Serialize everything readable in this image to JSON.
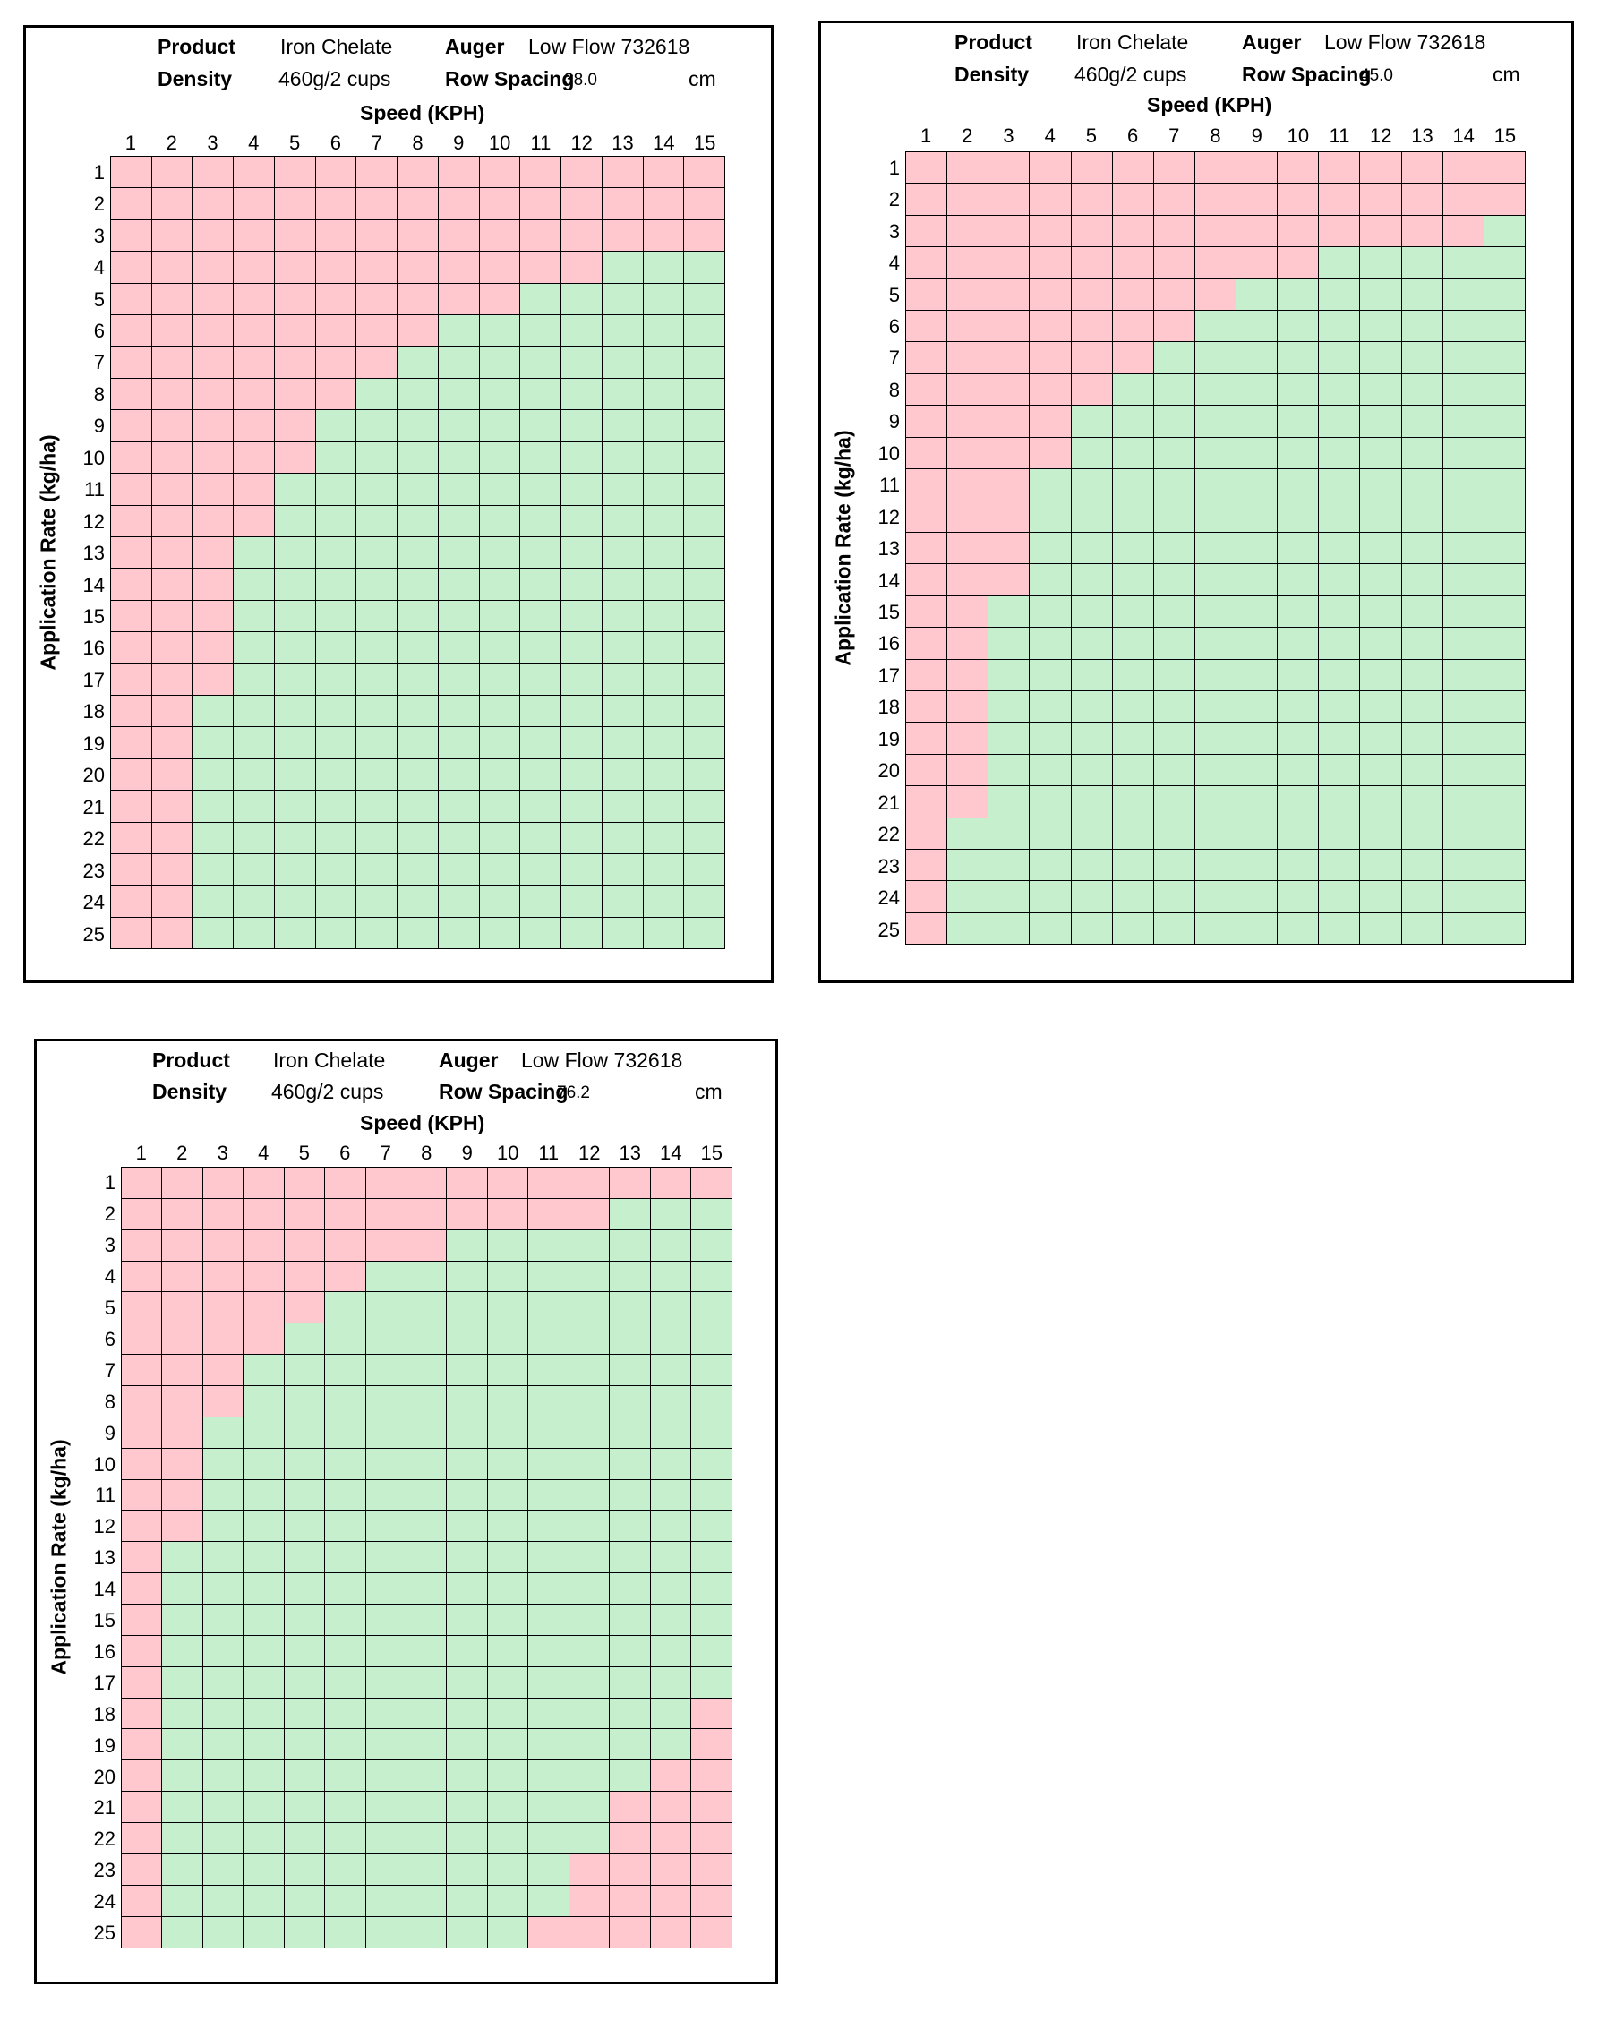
{
  "common": {
    "product_label": "Product",
    "product_value": "Iron Chelate",
    "auger_label": "Auger",
    "auger_value": "Low Flow 732618",
    "density_label": "Density",
    "density_value": "460g/2 cups",
    "row_spacing_label": "Row Spacing",
    "row_spacing_unit": "cm",
    "speed_title": "Speed (KPH)",
    "rate_title": "Application Rate (kg/ha)"
  },
  "colors": {
    "out_of_range": "#ffc7ce",
    "in_range": "#c6efce"
  },
  "chart_data": [
    {
      "type": "heatmap",
      "title": "",
      "row_spacing": "38.0",
      "xlabel": "Speed (KPH)",
      "ylabel": "Application Rate (kg/ha)",
      "x": [
        1,
        2,
        3,
        4,
        5,
        6,
        7,
        8,
        9,
        10,
        11,
        12,
        13,
        14,
        15
      ],
      "y": [
        1,
        2,
        3,
        4,
        5,
        6,
        7,
        8,
        9,
        10,
        11,
        12,
        13,
        14,
        15,
        16,
        17,
        18,
        19,
        20,
        21,
        22,
        23,
        24,
        25
      ],
      "encoding": "1 = out of range (pink), 0 = in range (green)",
      "matrix": [
        "111111111111111",
        "111111111111111",
        "111111111111111",
        "111111111111000",
        "111111111100000",
        "111111110000000",
        "111111100000000",
        "111111000000000",
        "111110000000000",
        "111110000000000",
        "111100000000000",
        "111100000000000",
        "111000000000000",
        "111000000000000",
        "111000000000000",
        "111000000000000",
        "111000000000000",
        "110000000000000",
        "110000000000000",
        "110000000000000",
        "110000000000000",
        "110000000000000",
        "110000000000000",
        "110000000000000",
        "110000000000000"
      ]
    },
    {
      "type": "heatmap",
      "title": "",
      "row_spacing": "45.0",
      "xlabel": "Speed (KPH)",
      "ylabel": "Application Rate (kg/ha)",
      "x": [
        1,
        2,
        3,
        4,
        5,
        6,
        7,
        8,
        9,
        10,
        11,
        12,
        13,
        14,
        15
      ],
      "y": [
        1,
        2,
        3,
        4,
        5,
        6,
        7,
        8,
        9,
        10,
        11,
        12,
        13,
        14,
        15,
        16,
        17,
        18,
        19,
        20,
        21,
        22,
        23,
        24,
        25
      ],
      "encoding": "1 = out of range (pink), 0 = in range (green)",
      "matrix": [
        "111111111111111",
        "111111111111111",
        "111111111111110",
        "111111111100000",
        "111111110000000",
        "111111100000000",
        "111111000000000",
        "111110000000000",
        "111100000000000",
        "111100000000000",
        "111000000000000",
        "111000000000000",
        "111000000000000",
        "111000000000000",
        "110000000000000",
        "110000000000000",
        "110000000000000",
        "110000000000000",
        "110000000000000",
        "110000000000000",
        "110000000000000",
        "100000000000000",
        "100000000000000",
        "100000000000000",
        "100000000000000"
      ]
    },
    {
      "type": "heatmap",
      "title": "",
      "row_spacing": "76.2",
      "xlabel": "Speed (KPH)",
      "ylabel": "Application Rate (kg/ha)",
      "x": [
        1,
        2,
        3,
        4,
        5,
        6,
        7,
        8,
        9,
        10,
        11,
        12,
        13,
        14,
        15
      ],
      "y": [
        1,
        2,
        3,
        4,
        5,
        6,
        7,
        8,
        9,
        10,
        11,
        12,
        13,
        14,
        15,
        16,
        17,
        18,
        19,
        20,
        21,
        22,
        23,
        24,
        25
      ],
      "encoding": "1 = out of range (pink), 0 = in range (green)",
      "matrix": [
        "111111111111111",
        "111111111111000",
        "111111110000000",
        "111111000000000",
        "111110000000000",
        "111100000000000",
        "111000000000000",
        "111000000000000",
        "110000000000000",
        "110000000000000",
        "110000000000000",
        "110000000000000",
        "100000000000000",
        "100000000000000",
        "100000000000000",
        "100000000000000",
        "100000000000000",
        "100000000000001",
        "100000000000001",
        "100000000000011",
        "100000000000111",
        "100000000000111",
        "100000000001111",
        "100000000001111",
        "100000000011111"
      ]
    }
  ]
}
